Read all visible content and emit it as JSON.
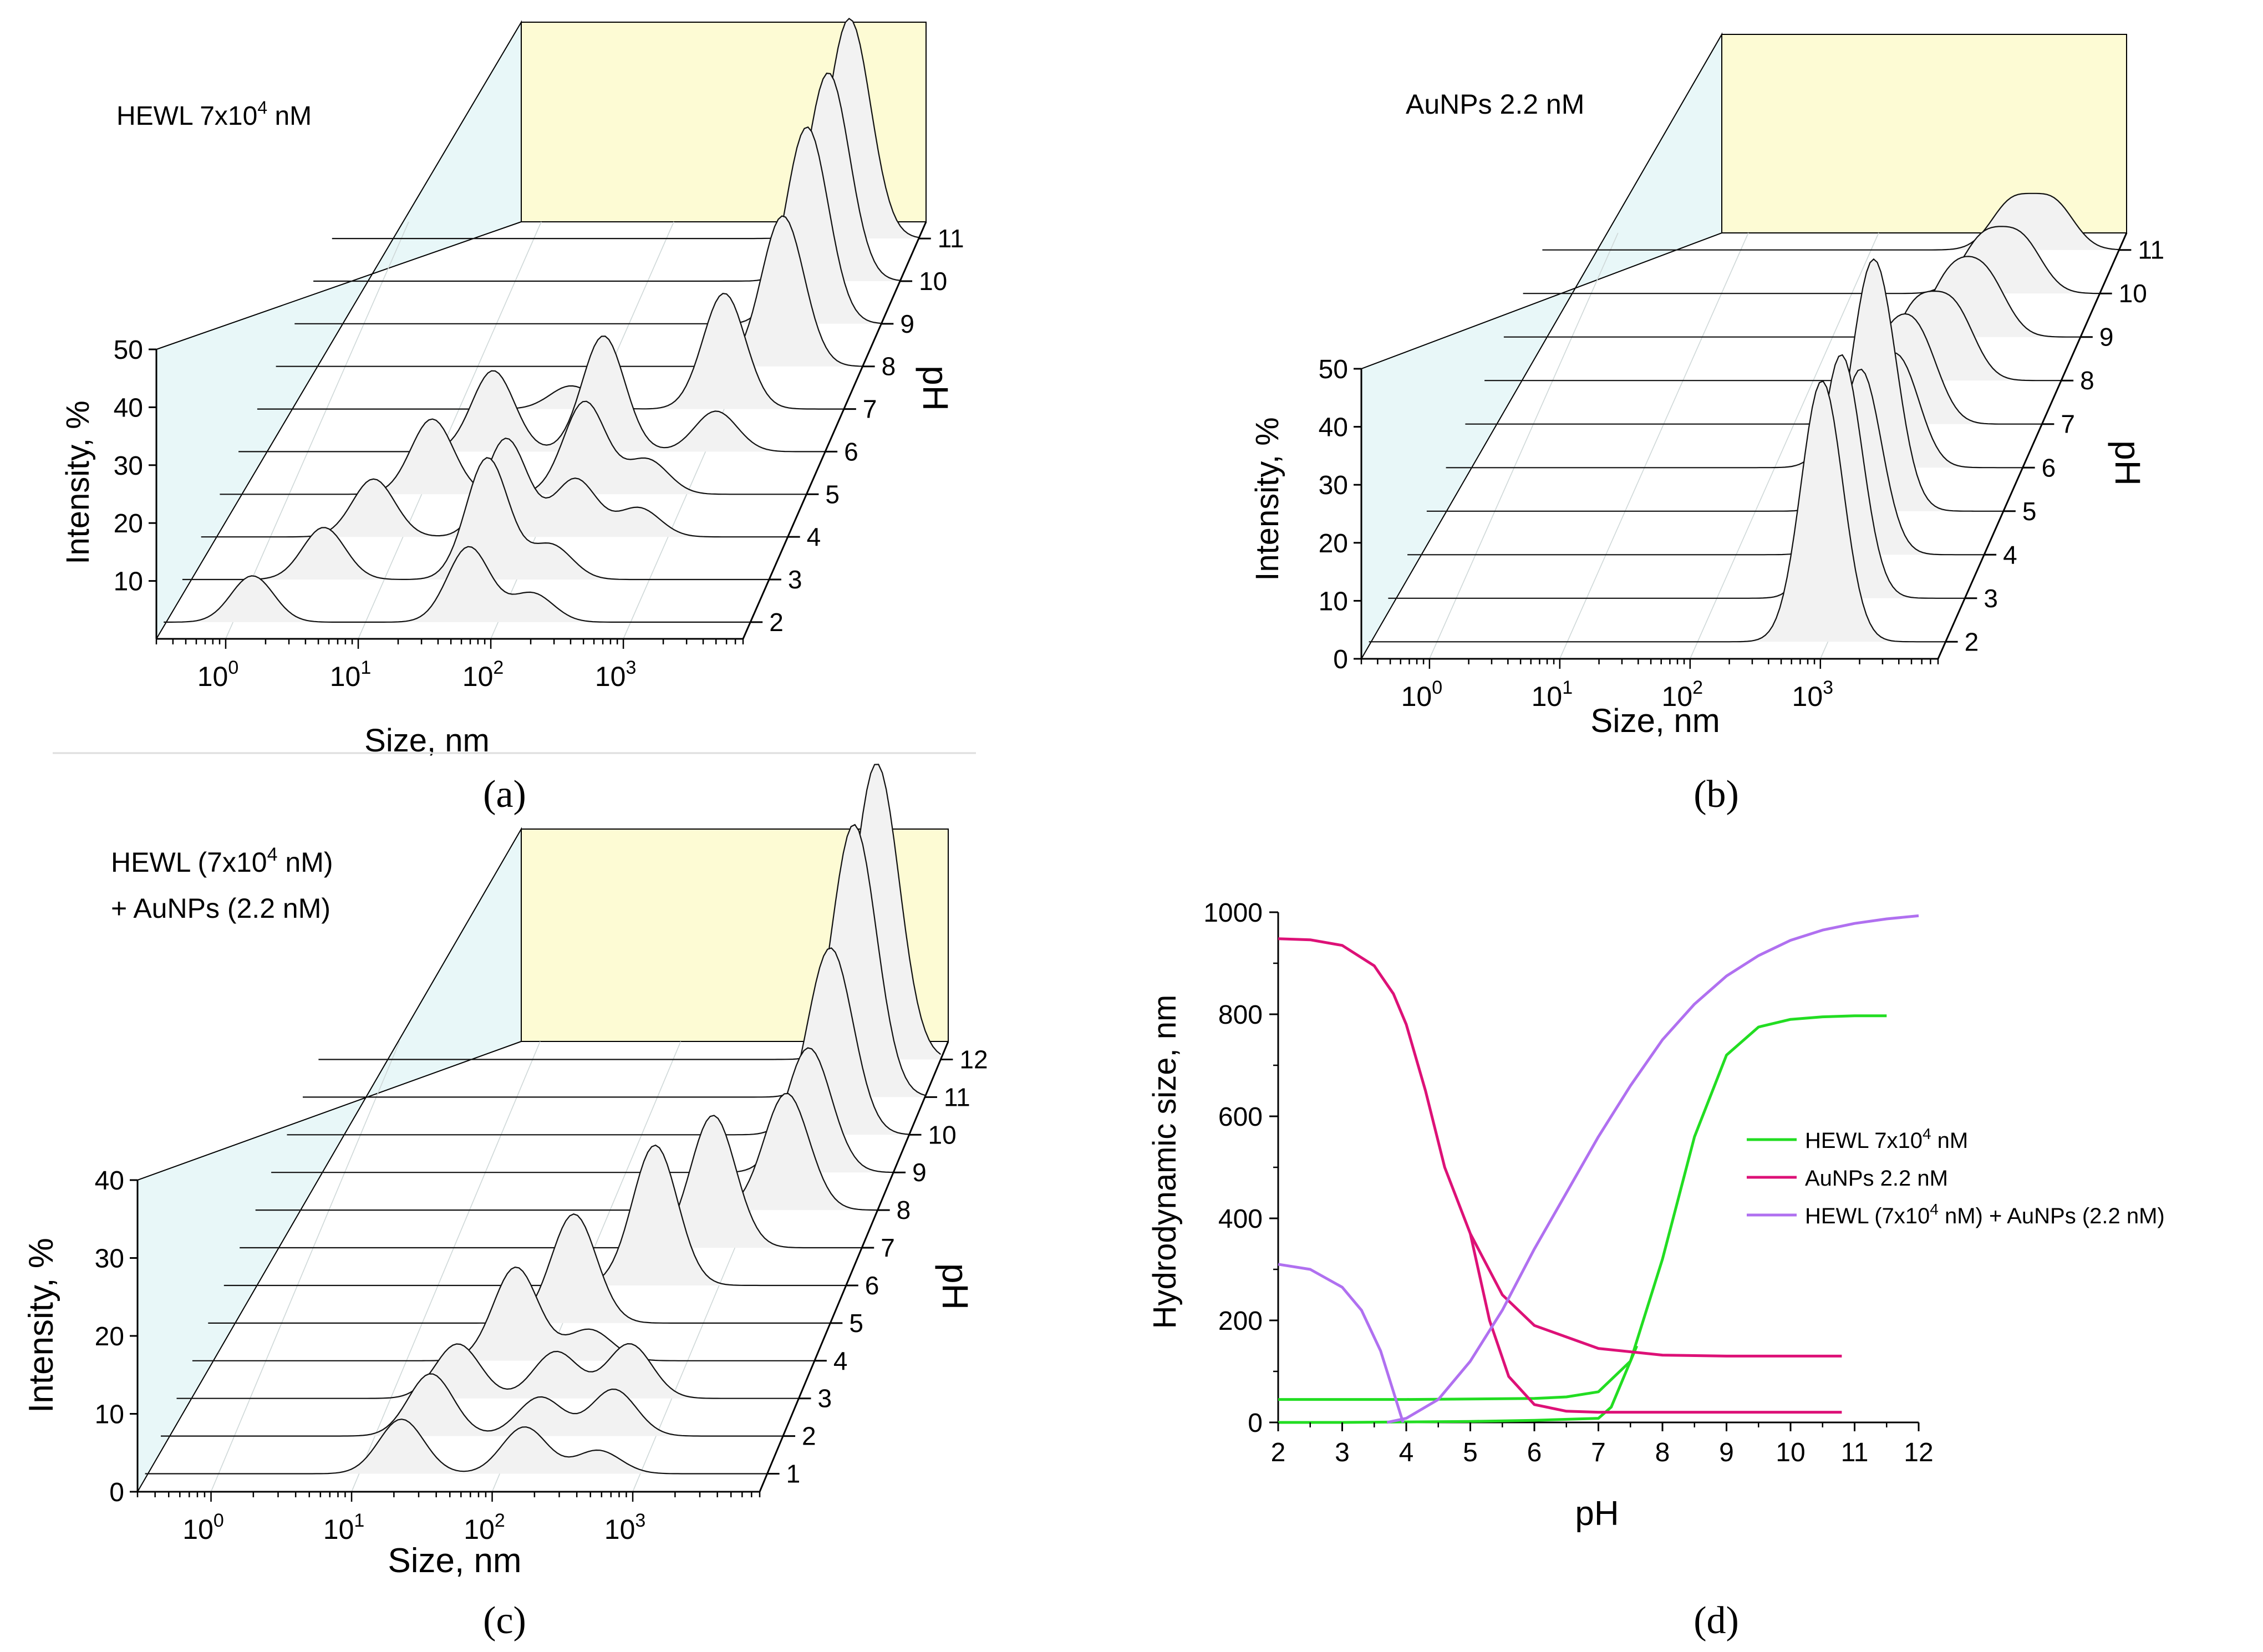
{
  "panels": [
    {
      "id": "a",
      "caption": "(a)",
      "annotation": "HEWL 7x10",
      "annotation_sup": "4",
      "annotation_tail": " nM",
      "ylabel": "Intensity, %",
      "xlabel": "Size, nm",
      "zlabel": "pH",
      "yticks": [
        "10",
        "20",
        "30",
        "40",
        "50"
      ],
      "ph_ticks": [
        "2",
        "3",
        "4",
        "5",
        "6",
        "7",
        "8",
        "9",
        "10",
        "11"
      ]
    },
    {
      "id": "b",
      "caption": "(b)",
      "annotation": "AuNPs 2.2 nM",
      "ylabel": "Intensity, %",
      "xlabel": "Size, nm",
      "zlabel": "pH",
      "yticks": [
        "0",
        "10",
        "20",
        "30",
        "40",
        "50"
      ],
      "ph_ticks": [
        "2",
        "3",
        "4",
        "5",
        "6",
        "7",
        "8",
        "9",
        "10",
        "11"
      ]
    },
    {
      "id": "c",
      "caption": "(c)",
      "annotation": "HEWL (7x10",
      "annotation_sup": "4",
      "annotation_tail": " nM)",
      "annotation_line2": "+ AuNPs (2.2 nM)",
      "ylabel": "Intensity, %",
      "xlabel": "Size, nm",
      "zlabel": "pH",
      "yticks": [
        "0",
        "10",
        "20",
        "30",
        "40"
      ],
      "ph_ticks": [
        "1",
        "2",
        "3",
        "4",
        "5",
        "6",
        "7",
        "8",
        "9",
        "10",
        "11",
        "12"
      ]
    }
  ],
  "size_ticks": [
    "10",
    "10",
    "10",
    "10"
  ],
  "size_tick_exps": [
    "0",
    "1",
    "2",
    "3"
  ],
  "chart_data": [
    {
      "id": "a",
      "type": "area",
      "title": "HEWL 7x10^4 nM",
      "xlabel": "Size, nm",
      "ylabel": "Intensity, %",
      "zlabel": "pH",
      "x_scale": "log",
      "xlim": [
        0.3,
        8000
      ],
      "ylim": [
        0,
        50
      ],
      "series": [
        {
          "pH": 2,
          "peaks": [
            [
              1.4,
              8
            ],
            [
              60,
              13
            ],
            [
              180,
              5
            ]
          ]
        },
        {
          "pH": 3,
          "peaks": [
            [
              3.5,
              9
            ],
            [
              60,
              21
            ],
            [
              180,
              6
            ]
          ]
        },
        {
          "pH": 4,
          "peaks": [
            [
              6,
              10
            ],
            [
              60,
              17
            ],
            [
              200,
              10
            ],
            [
              600,
              5
            ]
          ]
        },
        {
          "pH": 5,
          "peaks": [
            [
              12,
              13
            ],
            [
              170,
              16
            ],
            [
              500,
              6
            ]
          ]
        },
        {
          "pH": 6,
          "peaks": [
            [
              25,
              14
            ],
            [
              170,
              20
            ],
            [
              1200,
              7
            ]
          ]
        },
        {
          "pH": 7,
          "peaks": [
            [
              70,
              4
            ],
            [
              1000,
              20
            ]
          ]
        },
        {
          "pH": 8,
          "peaks": [
            [
              2000,
              26
            ]
          ]
        },
        {
          "pH": 9,
          "peaks": [
            [
              2200,
              34
            ]
          ]
        },
        {
          "pH": 10,
          "peaks": [
            [
              2300,
              36
            ]
          ]
        },
        {
          "pH": 11,
          "peaks": [
            [
              2400,
              38
            ]
          ]
        }
      ]
    },
    {
      "id": "b",
      "type": "area",
      "title": "AuNPs 2.2 nM",
      "xlabel": "Size, nm",
      "ylabel": "Intensity, %",
      "zlabel": "pH",
      "x_scale": "log",
      "xlim": [
        0.3,
        8000
      ],
      "ylim": [
        0,
        50
      ],
      "series": [
        {
          "pH": 2,
          "peaks": [
            [
              900,
              45
            ]
          ]
        },
        {
          "pH": 3,
          "peaks": [
            [
              900,
              42
            ]
          ]
        },
        {
          "pH": 4,
          "peaks": [
            [
              900,
              32
            ]
          ]
        },
        {
          "pH": 5,
          "peaks": [
            [
              700,
              20
            ],
            [
              900,
              26
            ]
          ]
        },
        {
          "pH": 6,
          "peaks": [
            [
              400,
              16
            ],
            [
              900,
              18
            ]
          ]
        },
        {
          "pH": 7,
          "peaks": [
            [
              500,
              12
            ],
            [
              900,
              14
            ]
          ]
        },
        {
          "pH": 8,
          "peaks": [
            [
              600,
              12
            ],
            [
              1200,
              12
            ]
          ]
        },
        {
          "pH": 9,
          "peaks": [
            [
              800,
              10
            ],
            [
              1500,
              10
            ]
          ]
        },
        {
          "pH": 10,
          "peaks": [
            [
              1000,
              9
            ],
            [
              2000,
              9
            ]
          ]
        },
        {
          "pH": 11,
          "peaks": [
            [
              1200,
              8
            ],
            [
              2500,
              8
            ]
          ]
        }
      ]
    },
    {
      "id": "c",
      "type": "area",
      "title": "HEWL (7x10^4 nM) + AuNPs (2.2 nM)",
      "xlabel": "Size, nm",
      "ylabel": "Intensity, %",
      "zlabel": "pH",
      "x_scale": "log",
      "xlim": [
        0.3,
        8000
      ],
      "ylim": [
        0,
        40
      ],
      "series": [
        {
          "pH": 1,
          "peaks": [
            [
              20,
              7
            ],
            [
              150,
              6
            ],
            [
              500,
              3
            ]
          ]
        },
        {
          "pH": 2,
          "peaks": [
            [
              25,
              8
            ],
            [
              150,
              5
            ],
            [
              500,
              6
            ]
          ]
        },
        {
          "pH": 3,
          "peaks": [
            [
              30,
              7
            ],
            [
              150,
              6
            ],
            [
              500,
              7
            ]
          ]
        },
        {
          "pH": 4,
          "peaks": [
            [
              60,
              12
            ],
            [
              200,
              4
            ]
          ]
        },
        {
          "pH": 5,
          "peaks": [
            [
              120,
              14
            ]
          ]
        },
        {
          "pH": 6,
          "peaks": [
            [
              350,
              18
            ]
          ]
        },
        {
          "pH": 7,
          "peaks": [
            [
              700,
              17
            ]
          ]
        },
        {
          "pH": 8,
          "peaks": [
            [
              1800,
              15
            ]
          ]
        },
        {
          "pH": 9,
          "peaks": [
            [
              2000,
              16
            ]
          ]
        },
        {
          "pH": 10,
          "peaks": [
            [
              2200,
              24
            ]
          ]
        },
        {
          "pH": 11,
          "peaks": [
            [
              2500,
              35
            ]
          ]
        },
        {
          "pH": 12,
          "peaks": [
            [
              2800,
              38
            ]
          ]
        }
      ]
    },
    {
      "id": "d",
      "type": "line",
      "caption": "(d)",
      "xlabel": "pH",
      "ylabel": "Hydrodynamic size, nm",
      "xlim": [
        2,
        12
      ],
      "ylim": [
        0,
        1000
      ],
      "xticks": [
        "2",
        "3",
        "4",
        "5",
        "6",
        "7",
        "8",
        "9",
        "10",
        "11",
        "12"
      ],
      "yticks": [
        "0",
        "200",
        "400",
        "600",
        "800",
        "1000"
      ],
      "legend_position": "center-right",
      "legend": [
        {
          "pre": "HEWL 7x10",
          "sup": "4",
          "post": " nM"
        },
        {
          "pre": "AuNPs 2.2 nM",
          "sup": "",
          "post": ""
        },
        {
          "pre": "HEWL (7x10",
          "sup": "4",
          "post": " nM) + AuNPs (2.2 nM)"
        }
      ],
      "series": [
        {
          "name": "HEWL 7x10^4 nM",
          "color": "#22dd22",
          "x": [
            2,
            3,
            4,
            5,
            6,
            6.5,
            7,
            7.5,
            8,
            8.5,
            9,
            9.5,
            10,
            10.5,
            11,
            11.5
          ],
          "y": [
            45,
            45,
            45,
            46,
            47,
            50,
            60,
            120,
            320,
            560,
            720,
            775,
            790,
            795,
            797,
            797
          ]
        },
        {
          "name": "HEWL 7x10^4 nM (lower branch)",
          "color": "#22dd22",
          "x": [
            2,
            3,
            4,
            5,
            6,
            7,
            7.2,
            7.4,
            7.6
          ],
          "y": [
            0,
            0,
            1,
            2,
            4,
            8,
            30,
            90,
            150
          ]
        },
        {
          "name": "AuNPs 2.2 nM",
          "color": "#dd1177",
          "x": [
            2,
            2.5,
            3,
            3.5,
            3.8,
            4,
            4.3,
            4.6,
            5,
            5.5,
            6,
            7,
            8,
            9,
            10,
            10.8
          ],
          "y": [
            948,
            946,
            935,
            895,
            840,
            780,
            650,
            500,
            370,
            250,
            190,
            145,
            132,
            130,
            130,
            130
          ]
        },
        {
          "name": "AuNPs 2.2 nM (lower branch)",
          "color": "#dd1177",
          "x": [
            5,
            5.3,
            5.6,
            6,
            6.5,
            7,
            8,
            9,
            10,
            10.8
          ],
          "y": [
            370,
            200,
            90,
            35,
            22,
            20,
            20,
            20,
            20,
            20
          ]
        },
        {
          "name": "HEWL (7x10^4 nM) + AuNPs (2.2 nM)",
          "color": "#b070f0",
          "x": [
            3.7,
            4,
            4.5,
            5,
            5.5,
            6,
            6.5,
            7,
            7.5,
            8,
            8.5,
            9,
            9.5,
            10,
            10.5,
            11,
            11.5,
            12
          ],
          "y": [
            0,
            8,
            45,
            120,
            220,
            340,
            450,
            560,
            660,
            750,
            820,
            875,
            915,
            945,
            965,
            978,
            987,
            993
          ]
        },
        {
          "name": "HEWL (7x10^4 nM) + AuNPs (2.2 nM) (left branch)",
          "color": "#b070f0",
          "x": [
            2,
            2.5,
            3,
            3.3,
            3.6,
            3.8,
            3.95
          ],
          "y": [
            310,
            300,
            265,
            220,
            140,
            60,
            0
          ]
        }
      ]
    }
  ]
}
